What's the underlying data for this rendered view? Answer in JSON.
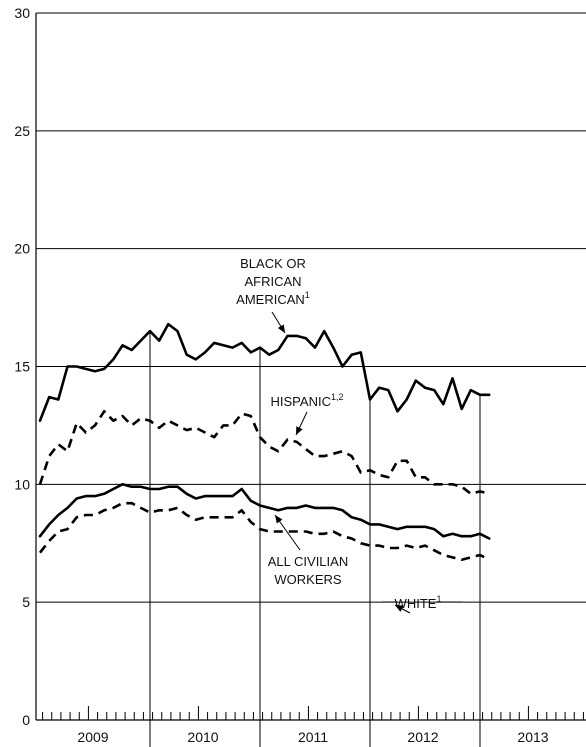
{
  "chart_data": {
    "type": "line",
    "title": "",
    "xlabel": "",
    "ylabel": "",
    "ylim": [
      0,
      30
    ],
    "yticks": [
      "0",
      "5",
      "10",
      "15",
      "20",
      "25",
      "30"
    ],
    "year_labels": [
      "2009",
      "2010",
      "2011",
      "2012",
      "2013"
    ],
    "grid": "horizontal",
    "x_start": "2009-01",
    "series": [
      {
        "key": "black",
        "style": "solid",
        "label": "BLACK OR AFRICAN AMERICAN",
        "label_lines": [
          "BLACK OR",
          "AFRICAN",
          "AMERICAN"
        ],
        "footnote": "1",
        "values": [
          12.7,
          13.7,
          13.6,
          15.0,
          15.0,
          14.9,
          14.8,
          14.9,
          15.3,
          15.9,
          15.7,
          16.1,
          16.5,
          16.1,
          16.8,
          16.5,
          15.5,
          15.3,
          15.6,
          16.0,
          15.9,
          15.8,
          16.0,
          15.6,
          15.8,
          15.5,
          15.7,
          16.3,
          16.3,
          16.2,
          15.8,
          16.5,
          15.8,
          15.0,
          15.5,
          15.6,
          13.6,
          14.1,
          14.0,
          13.1,
          13.6,
          14.4,
          14.1,
          14.0,
          13.4,
          14.5,
          13.2,
          14.0,
          13.8,
          13.8
        ]
      },
      {
        "key": "hispanic",
        "style": "dashed",
        "label": "HISPANIC",
        "label_lines": [
          "HISPANIC"
        ],
        "footnote": "1,2",
        "values": [
          10.0,
          11.2,
          11.7,
          11.4,
          12.6,
          12.2,
          12.5,
          13.1,
          12.7,
          12.9,
          12.5,
          12.8,
          12.7,
          12.4,
          12.7,
          12.5,
          12.3,
          12.4,
          12.2,
          12.0,
          12.5,
          12.5,
          13.0,
          12.9,
          12.0,
          11.6,
          11.4,
          11.9,
          11.8,
          11.5,
          11.2,
          11.2,
          11.3,
          11.4,
          11.2,
          10.5,
          10.6,
          10.4,
          10.3,
          11.0,
          11.0,
          10.3,
          10.3,
          10.0,
          10.0,
          10.0,
          9.9,
          9.6,
          9.7,
          9.6
        ]
      },
      {
        "key": "all",
        "style": "solid",
        "label": "ALL CIVILIAN WORKERS",
        "label_lines": [
          "ALL CIVILIAN",
          "WORKERS"
        ],
        "footnote": "",
        "values": [
          7.8,
          8.3,
          8.7,
          9.0,
          9.4,
          9.5,
          9.5,
          9.6,
          9.8,
          10.0,
          9.9,
          9.9,
          9.8,
          9.8,
          9.9,
          9.9,
          9.6,
          9.4,
          9.5,
          9.5,
          9.5,
          9.5,
          9.8,
          9.3,
          9.1,
          9.0,
          8.9,
          9.0,
          9.0,
          9.1,
          9.0,
          9.0,
          9.0,
          8.9,
          8.6,
          8.5,
          8.3,
          8.3,
          8.2,
          8.1,
          8.2,
          8.2,
          8.2,
          8.1,
          7.8,
          7.9,
          7.8,
          7.8,
          7.9,
          7.7
        ]
      },
      {
        "key": "white",
        "style": "dashed",
        "label": "WHITE",
        "label_lines": [
          "WHITE"
        ],
        "footnote": "1",
        "values": [
          7.1,
          7.6,
          8.0,
          8.1,
          8.6,
          8.7,
          8.7,
          8.9,
          9.0,
          9.2,
          9.2,
          9.0,
          8.8,
          8.9,
          8.9,
          9.0,
          8.7,
          8.5,
          8.6,
          8.6,
          8.6,
          8.6,
          8.9,
          8.4,
          8.1,
          8.0,
          8.0,
          8.0,
          8.0,
          8.0,
          7.9,
          7.9,
          8.0,
          7.8,
          7.7,
          7.5,
          7.4,
          7.4,
          7.3,
          7.3,
          7.4,
          7.3,
          7.4,
          7.2,
          7.0,
          6.9,
          6.8,
          6.9,
          7.0,
          6.8
        ]
      }
    ]
  }
}
